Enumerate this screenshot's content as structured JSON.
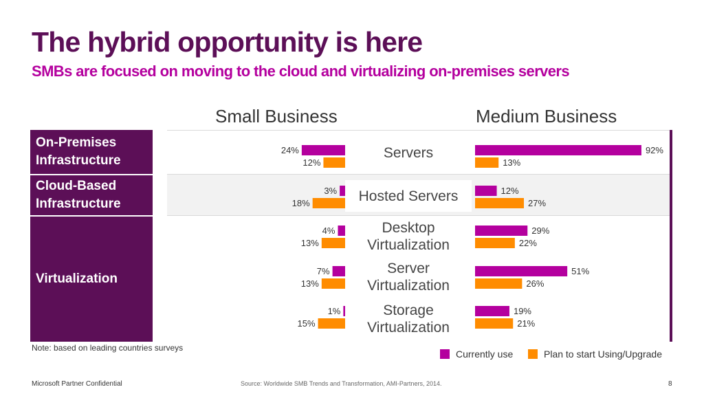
{
  "slide": {
    "title": "The hybrid opportunity is here",
    "subtitle": "SMBs are focused on moving to the cloud and virtualizing on-premises servers",
    "note": "Note: based on leading countries surveys",
    "footer_left": "Microsoft Partner Confidential",
    "source": "Source: Worldwide SMB Trends and Transformation, AMI-Partners, 2014.",
    "page_number": "8"
  },
  "row_groups": [
    {
      "label": "On-Premises Infrastructure"
    },
    {
      "label": "Cloud-Based Infrastructure"
    },
    {
      "label": "Virtualization"
    }
  ],
  "colors": {
    "current": "#b4009e",
    "plan": "#ff8c00",
    "label_bg": "#5c0f57",
    "title": "#5c0f57",
    "subtitle": "#b4009e"
  },
  "chart_data": {
    "type": "bar",
    "orientation": "horizontal",
    "panels": [
      "Small Business",
      "Medium Business"
    ],
    "categories": [
      "Servers",
      "Hosted Servers",
      "Desktop Virtualization",
      "Server Virtualization",
      "Storage Virtualization"
    ],
    "series": [
      {
        "name": "Currently use",
        "color": "#b4009e",
        "small_business": [
          24,
          3,
          4,
          7,
          1
        ],
        "medium_business": [
          92,
          12,
          29,
          51,
          19
        ]
      },
      {
        "name": "Plan to start Using/Upgrade",
        "color": "#ff8c00",
        "small_business": [
          12,
          18,
          13,
          13,
          15
        ],
        "medium_business": [
          13,
          27,
          22,
          26,
          21
        ]
      }
    ],
    "value_suffix": "%",
    "xlim": [
      0,
      100
    ],
    "legend_position": "bottom-right"
  }
}
